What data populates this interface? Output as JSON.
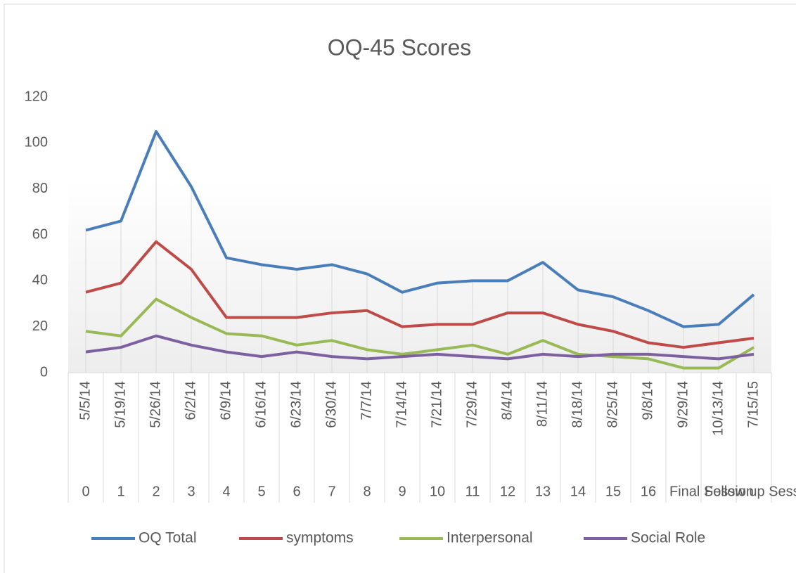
{
  "chart_data": {
    "type": "line",
    "title": "OQ-45 Scores",
    "categories": [
      "5/5/14",
      "5/19/14",
      "5/26/14",
      "6/2/14",
      "6/9/14",
      "6/16/14",
      "6/23/14",
      "6/30/14",
      "7/7/14",
      "7/14/14",
      "7/21/14",
      "7/29/14",
      "8/4/14",
      "8/11/14",
      "8/18/14",
      "8/25/14",
      "9/8/14",
      "9/29/14",
      "10/13/14",
      "7/15/15"
    ],
    "sessions": [
      "0",
      "1",
      "2",
      "3",
      "4",
      "5",
      "6",
      "7",
      "8",
      "9",
      "10",
      "11",
      "12",
      "13",
      "14",
      "15",
      "16",
      "Final Session",
      "Follow up Session",
      null
    ],
    "series": [
      {
        "name": "OQ Total",
        "color": "#4a7ebb",
        "values": [
          62,
          66,
          105,
          81,
          50,
          47,
          45,
          47,
          43,
          35,
          39,
          40,
          40,
          48,
          36,
          33,
          27,
          20,
          21,
          34
        ]
      },
      {
        "name": "symptoms",
        "color": "#be4b48",
        "values": [
          35,
          39,
          57,
          45,
          24,
          24,
          24,
          26,
          27,
          20,
          21,
          21,
          26,
          26,
          21,
          18,
          13,
          11,
          13,
          15
        ]
      },
      {
        "name": "Interpersonal",
        "color": "#98b954",
        "values": [
          18,
          16,
          32,
          24,
          17,
          16,
          12,
          14,
          10,
          8,
          10,
          12,
          8,
          14,
          8,
          7,
          6,
          2,
          2,
          11
        ]
      },
      {
        "name": "Social Role",
        "color": "#7d60a0",
        "values": [
          9,
          11,
          16,
          12,
          9,
          7,
          9,
          7,
          6,
          7,
          8,
          7,
          6,
          8,
          7,
          8,
          8,
          7,
          6,
          8
        ]
      }
    ],
    "ylim": [
      0,
      120
    ],
    "yticks": [
      0,
      20,
      40,
      60,
      80,
      100,
      120
    ],
    "legend": "bottom"
  }
}
